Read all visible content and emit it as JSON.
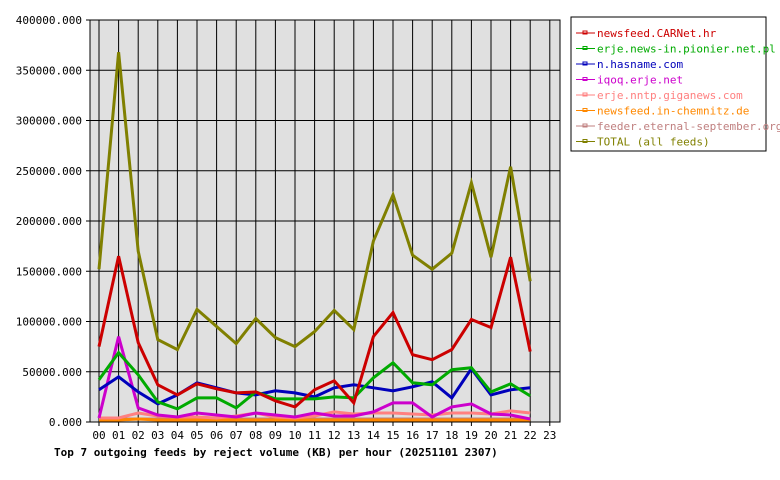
{
  "chart_data": {
    "type": "line",
    "title": "Top 7 outgoing feeds by reject volume (KB) per hour (20251101 2307)",
    "xlabel": "",
    "ylabel": "",
    "ylim": [
      0,
      400000
    ],
    "grid": true,
    "legend_position": "right",
    "y_ticks": [
      "0.000",
      "50000.000",
      "100000.000",
      "150000.000",
      "200000.000",
      "250000.000",
      "300000.000",
      "350000.000",
      "400000.000"
    ],
    "y_tick_values": [
      0,
      50000,
      100000,
      150000,
      200000,
      250000,
      300000,
      350000,
      400000
    ],
    "categories": [
      "00",
      "01",
      "02",
      "03",
      "04",
      "05",
      "06",
      "07",
      "08",
      "09",
      "10",
      "11",
      "12",
      "13",
      "14",
      "15",
      "16",
      "17",
      "18",
      "19",
      "20",
      "21",
      "22",
      "23"
    ],
    "series": [
      {
        "name": "newsfeed.CARNet.hr",
        "color": "#cc0000",
        "values": [
          75000,
          165000,
          79000,
          37000,
          27000,
          38000,
          33000,
          29000,
          30000,
          21000,
          15000,
          32000,
          41000,
          19000,
          85000,
          109000,
          67000,
          62000,
          72000,
          102000,
          94000,
          164000,
          70000
        ]
      },
      {
        "name": "erje.news-in.pionier.net.pl",
        "color": "#00aa00",
        "values": [
          42000,
          69000,
          47000,
          20000,
          13000,
          24000,
          24000,
          14000,
          30000,
          23000,
          23000,
          23000,
          25000,
          24000,
          44000,
          59000,
          39000,
          37000,
          52000,
          54000,
          30000,
          38000,
          26000
        ]
      },
      {
        "name": "n.hasname.com",
        "color": "#0000bb",
        "values": [
          32000,
          45000,
          30000,
          18000,
          27000,
          39000,
          34000,
          29000,
          27000,
          31000,
          29000,
          25000,
          34000,
          37000,
          34000,
          31000,
          35000,
          40000,
          24000,
          53000,
          27000,
          32000,
          34000
        ]
      },
      {
        "name": "iqoq.erje.net",
        "color": "#cc00cc",
        "values": [
          4000,
          85000,
          14000,
          7000,
          5000,
          9000,
          7000,
          5000,
          9000,
          7000,
          5000,
          9000,
          6000,
          6000,
          10000,
          19000,
          19000,
          5000,
          15000,
          18000,
          8000,
          7000,
          3000
        ]
      },
      {
        "name": "erje.nntp.giganews.com",
        "color": "#ff8080",
        "values": [
          4000,
          4000,
          9000,
          6000,
          5000,
          5000,
          4000,
          6000,
          9000,
          5000,
          4000,
          6000,
          10000,
          8000,
          9000,
          9000,
          8000,
          7000,
          9000,
          9000,
          8000,
          11000,
          9000
        ]
      },
      {
        "name": "newsfeed.in-chemnitz.de",
        "color": "#ff8800",
        "values": [
          2000,
          2000,
          3000,
          2000,
          2000,
          2000,
          2000,
          2000,
          2000,
          2000,
          2000,
          2000,
          2000,
          2000,
          2000,
          2000,
          2000,
          2000,
          2000,
          2000,
          2000,
          2000,
          2000
        ]
      },
      {
        "name": "feeder.eternal-september.org",
        "color": "#c08080",
        "values": [
          3000,
          3000,
          3000,
          3000,
          3000,
          3000,
          3000,
          3000,
          3000,
          3000,
          3000,
          3000,
          3000,
          3000,
          3000,
          3000,
          3000,
          3000,
          3000,
          3000,
          3000,
          3000,
          3000
        ]
      },
      {
        "name": "TOTAL (all feeds)",
        "color": "#808000",
        "values": [
          152000,
          368000,
          170000,
          82000,
          72000,
          112000,
          95000,
          78000,
          103000,
          84000,
          75000,
          90000,
          111000,
          92000,
          180000,
          226000,
          166000,
          152000,
          168000,
          238000,
          164000,
          254000,
          140000
        ]
      }
    ]
  },
  "colors": {
    "plot_background": "#e0e0e0",
    "grid": "#000000",
    "page_background": "#ffffff"
  }
}
